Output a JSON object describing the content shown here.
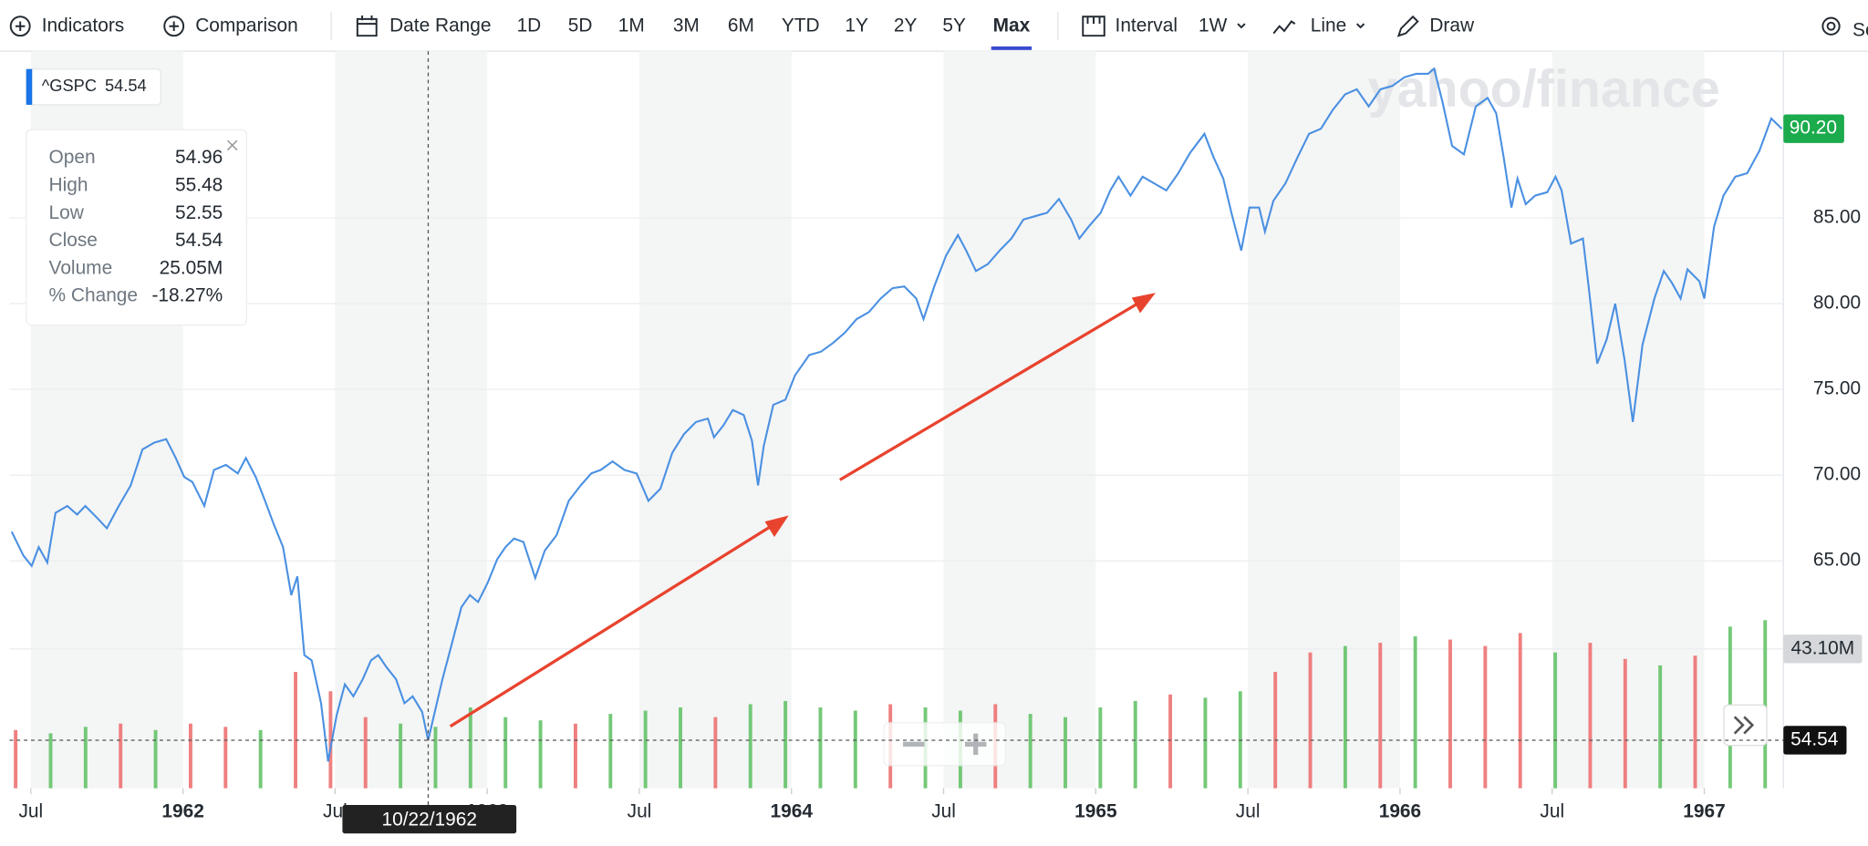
{
  "toolbar": {
    "indicators": "Indicators",
    "comparison": "Comparison",
    "date_range": "Date Range",
    "ranges": [
      "1D",
      "5D",
      "1M",
      "3M",
      "6M",
      "YTD",
      "1Y",
      "2Y",
      "5Y",
      "Max"
    ],
    "selected_range": "Max",
    "interval_label": "Interval",
    "interval": "1W",
    "chart_style": "Line",
    "draw": "Draw",
    "settings": "Settings"
  },
  "legend": {
    "symbol": "^GSPC",
    "value": 54.54
  },
  "tooltip": {
    "rows": [
      [
        "Open",
        54.96
      ],
      [
        "High",
        55.48
      ],
      [
        "Low",
        52.55
      ],
      [
        "Close",
        54.54
      ],
      [
        "Volume",
        "25.05M"
      ],
      [
        "% Change",
        "-18.27%"
      ]
    ]
  },
  "watermark": "yahoo/finance",
  "chart_data": {
    "type": "line",
    "series": [
      {
        "name": "^GSPC",
        "color": "#4a90e2",
        "x": [
          1961.437,
          1961.476,
          1961.503,
          1961.526,
          1961.554,
          1961.581,
          1961.62,
          1961.652,
          1961.679,
          1961.718,
          1961.75,
          1961.789,
          1961.828,
          1961.867,
          1961.906,
          1961.945,
          1961.976,
          1962.004,
          1962.031,
          1962.07,
          1962.102,
          1962.141,
          1962.18,
          1962.207,
          1962.239,
          1962.27,
          1962.297,
          1962.329,
          1962.356,
          1962.376,
          1962.399,
          1962.423,
          1962.454,
          1962.477,
          1962.505,
          1962.532,
          1962.56,
          1962.591,
          1962.618,
          1962.642,
          1962.669,
          1962.7,
          1962.728,
          1962.755,
          1962.786,
          1962.806,
          1962.853,
          1962.884,
          1962.915,
          1962.943,
          1962.97,
          1963.001,
          1963.033,
          1963.06,
          1963.088,
          1963.119,
          1963.158,
          1963.189,
          1963.228,
          1963.268,
          1963.307,
          1963.342,
          1963.373,
          1963.412,
          1963.451,
          1963.491,
          1963.53,
          1963.569,
          1963.608,
          1963.647,
          1963.686,
          1963.725,
          1963.745,
          1963.776,
          1963.807,
          1963.843,
          1963.87,
          1963.89,
          1963.909,
          1963.94,
          1963.98,
          1964.011,
          1964.058,
          1964.097,
          1964.136,
          1964.175,
          1964.214,
          1964.254,
          1964.293,
          1964.332,
          1964.371,
          1964.41,
          1964.434,
          1964.469,
          1964.508,
          1964.547,
          1964.574,
          1964.606,
          1964.645,
          1964.684,
          1964.723,
          1964.762,
          1964.801,
          1964.84,
          1964.879,
          1964.919,
          1964.946,
          1964.977,
          1965.016,
          1965.048,
          1965.075,
          1965.114,
          1965.154,
          1965.193,
          1965.232,
          1965.271,
          1965.31,
          1965.357,
          1965.388,
          1965.419,
          1965.447,
          1965.478,
          1965.505,
          1965.537,
          1965.556,
          1965.584,
          1965.623,
          1965.662,
          1965.701,
          1965.74,
          1965.779,
          1965.819,
          1965.858,
          1965.897,
          1965.936,
          1965.975,
          1966.014,
          1966.053,
          1966.092,
          1966.112,
          1966.139,
          1966.171,
          1966.21,
          1966.249,
          1966.288,
          1966.316,
          1966.339,
          1966.366,
          1966.386,
          1966.413,
          1966.444,
          1966.484,
          1966.511,
          1966.531,
          1966.562,
          1966.601,
          1966.62,
          1966.648,
          1966.679,
          1966.707,
          1966.738,
          1966.765,
          1966.797,
          1966.836,
          1966.867,
          1966.894,
          1966.922,
          1966.945,
          1966.984,
          1967.0,
          1967.032,
          1967.063,
          1967.102,
          1967.141,
          1967.181,
          1967.22,
          1967.255
        ],
        "values": [
          66.7,
          65.3,
          64.7,
          65.8,
          64.9,
          67.8,
          68.2,
          67.7,
          68.2,
          67.5,
          66.9,
          68.2,
          69.4,
          71.5,
          71.9,
          72.1,
          71.0,
          69.9,
          69.6,
          68.2,
          70.3,
          70.6,
          70.1,
          71.0,
          69.9,
          68.5,
          67.2,
          65.8,
          63.0,
          64.1,
          59.5,
          59.2,
          56.7,
          53.3,
          56.0,
          57.8,
          57.1,
          58.1,
          59.2,
          59.5,
          58.8,
          58.1,
          56.7,
          57.1,
          56.2,
          54.54,
          58.1,
          60.2,
          62.3,
          63.0,
          62.6,
          63.7,
          65.1,
          65.8,
          66.3,
          66.1,
          64.0,
          65.6,
          66.5,
          68.5,
          69.4,
          70.1,
          70.3,
          70.8,
          70.3,
          70.1,
          68.5,
          69.2,
          71.3,
          72.4,
          73.1,
          73.3,
          72.2,
          72.9,
          73.8,
          73.5,
          72.0,
          69.4,
          71.7,
          74.1,
          74.4,
          75.8,
          77.0,
          77.2,
          77.7,
          78.3,
          79.1,
          79.5,
          80.3,
          80.9,
          81.0,
          80.3,
          79.1,
          81.0,
          82.8,
          84.0,
          83.1,
          81.9,
          82.3,
          83.1,
          83.8,
          84.9,
          85.1,
          85.3,
          86.1,
          84.9,
          83.8,
          84.5,
          85.3,
          86.6,
          87.4,
          86.3,
          87.4,
          87.0,
          86.6,
          87.6,
          88.8,
          89.9,
          88.5,
          87.3,
          85.2,
          83.1,
          85.6,
          85.6,
          84.2,
          86.0,
          87.0,
          88.5,
          89.9,
          90.2,
          91.3,
          92.2,
          92.5,
          91.5,
          92.5,
          92.7,
          93.2,
          93.4,
          93.4,
          93.7,
          91.8,
          89.2,
          88.7,
          91.5,
          92.0,
          91.1,
          88.7,
          85.6,
          87.3,
          85.8,
          86.3,
          86.5,
          87.4,
          86.6,
          83.5,
          83.8,
          81.0,
          76.5,
          77.9,
          80.0,
          76.7,
          73.1,
          77.6,
          80.3,
          81.9,
          81.2,
          80.3,
          82.0,
          81.3,
          80.3,
          84.5,
          86.3,
          87.4,
          87.6,
          88.9,
          90.8,
          90.2
        ]
      }
    ],
    "volume": {
      "x": [
        1961.45,
        1961.565,
        1961.68,
        1961.795,
        1961.91,
        1962.025,
        1962.14,
        1962.255,
        1962.37,
        1962.485,
        1962.6,
        1962.715,
        1962.83,
        1962.945,
        1963.06,
        1963.175,
        1963.29,
        1963.405,
        1963.52,
        1963.635,
        1963.75,
        1963.865,
        1963.98,
        1964.095,
        1964.21,
        1964.325,
        1964.44,
        1964.555,
        1964.67,
        1964.785,
        1964.9,
        1965.015,
        1965.13,
        1965.245,
        1965.36,
        1965.475,
        1965.59,
        1965.705,
        1965.82,
        1965.935,
        1966.05,
        1966.165,
        1966.28,
        1966.395,
        1966.51,
        1966.625,
        1966.74,
        1966.855,
        1966.97,
        1967.085,
        1967.2
      ],
      "values": [
        18,
        17,
        19,
        20,
        18,
        20,
        19,
        18,
        36,
        30,
        22,
        20,
        19,
        25,
        22,
        21,
        20,
        23,
        24,
        25,
        22,
        26,
        27,
        25,
        24,
        26,
        25,
        24,
        26,
        23,
        22,
        25,
        27,
        29,
        28,
        30,
        36,
        42,
        44,
        45,
        47,
        46,
        44,
        48,
        42,
        45,
        40,
        38,
        41,
        50,
        52
      ],
      "colors": [
        "#ec6a6a",
        "#5cbf60",
        "#5cbf60",
        "#ec6a6a",
        "#5cbf60",
        "#ec6a6a",
        "#ec6a6a",
        "#5cbf60",
        "#ec6a6a",
        "#ec6a6a",
        "#ec6a6a",
        "#5cbf60",
        "#5cbf60",
        "#5cbf60",
        "#5cbf60",
        "#5cbf60",
        "#ec6a6a",
        "#5cbf60",
        "#5cbf60",
        "#5cbf60",
        "#ec6a6a",
        "#5cbf60",
        "#5cbf60",
        "#5cbf60",
        "#5cbf60",
        "#ec6a6a",
        "#5cbf60",
        "#5cbf60",
        "#ec6a6a",
        "#5cbf60",
        "#5cbf60",
        "#5cbf60",
        "#5cbf60",
        "#ec6a6a",
        "#5cbf60",
        "#5cbf60",
        "#ec6a6a",
        "#ec6a6a",
        "#5cbf60",
        "#ec6a6a",
        "#5cbf60",
        "#ec6a6a",
        "#ec6a6a",
        "#ec6a6a",
        "#5cbf60",
        "#ec6a6a",
        "#ec6a6a",
        "#5cbf60",
        "#ec6a6a",
        "#5cbf60",
        "#5cbf60"
      ]
    },
    "xlim": [
      1961.43,
      1967.26
    ],
    "xticks": [
      {
        "value": 1961.5,
        "label": "Jul"
      },
      {
        "value": 1962,
        "label": "1962"
      },
      {
        "value": 1962.5,
        "label": "Jul"
      },
      {
        "value": 1963,
        "label": "1963"
      },
      {
        "value": 1963.5,
        "label": "Jul"
      },
      {
        "value": 1964,
        "label": "1964"
      },
      {
        "value": 1964.5,
        "label": "Jul"
      },
      {
        "value": 1965,
        "label": "1965"
      },
      {
        "value": 1965.5,
        "label": "Jul"
      },
      {
        "value": 1966,
        "label": "1966"
      },
      {
        "value": 1966.5,
        "label": "Jul"
      },
      {
        "value": 1967,
        "label": "1967"
      }
    ],
    "ylim": [
      51.74,
      94.72
    ],
    "yticks": [
      {
        "value": 65,
        "label": "65.00"
      },
      {
        "value": 70,
        "label": "70.00"
      },
      {
        "value": 75,
        "label": "75.00"
      },
      {
        "value": 80,
        "label": "80.00"
      },
      {
        "value": 85,
        "label": "85.00"
      }
    ],
    "y2lim": [
      0,
      228
    ],
    "y2ticks": [
      {
        "value": 43.1,
        "label": "43.10M"
      }
    ],
    "last_price": {
      "value": 90.2,
      "label": "90.20"
    },
    "crosshair": {
      "x": 1962.806,
      "label": "10/22/1962",
      "price": 54.54
    },
    "grid": true
  }
}
